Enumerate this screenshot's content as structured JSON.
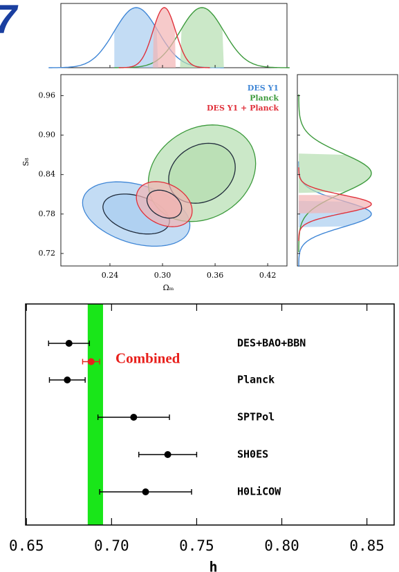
{
  "fragment_text": "7",
  "chart_data": [
    {
      "type": "contour",
      "x_label": "Ωₘ",
      "y_label": "S₈",
      "xlim": [
        0.184,
        0.442
      ],
      "ylim": [
        0.701,
        0.992
      ],
      "xticks": [
        0.24,
        {
          "value": 0.3,
          "label": "0.30"
        },
        0.36,
        0.42
      ],
      "yticks": [
        0.72,
        0.78,
        0.84,
        {
          "value": 0.9,
          "label": "0.90"
        },
        0.96
      ],
      "series": [
        {
          "name": "DES Y1",
          "color": "#3f86d6",
          "fill": "#a9cdf0",
          "x": 0.27,
          "y": 0.78,
          "sigma_x": 0.025,
          "sigma_y": 0.02,
          "rho": -0.35
        },
        {
          "name": "Planck",
          "color": "#3c9a3c",
          "fill": "#b5deb0",
          "x": 0.345,
          "y": 0.842,
          "sigma_x": 0.025,
          "sigma_y": 0.03,
          "rho": 0.2
        },
        {
          "name": "DES Y1 + Planck",
          "color": "#e0303a",
          "fill": "#f2b3b3",
          "x": 0.302,
          "y": 0.795,
          "sigma_x": 0.013,
          "sigma_y": 0.014,
          "rho": -0.3
        }
      ]
    },
    {
      "type": "forest",
      "x_label": "h",
      "xlim": [
        0.6495,
        0.866
      ],
      "xticks": [
        0.65,
        {
          "value": 0.7,
          "label": "0.70"
        },
        0.75,
        {
          "value": 0.8,
          "label": "0.80"
        },
        0.85
      ],
      "band": [
        0.686,
        0.695
      ],
      "band_color": "#19e619",
      "series": [
        {
          "name": "DES+BAO+BBN",
          "value": 0.675,
          "error": 0.012,
          "color": "#000000"
        },
        {
          "name": "Combined",
          "value": 0.688,
          "error": 0.005,
          "color": "#e8201c"
        },
        {
          "name": "Planck",
          "value": 0.674,
          "error": 0.0105,
          "color": "#000000"
        },
        {
          "name": "SPTPol",
          "value": 0.713,
          "error": 0.021,
          "color": "#000000"
        },
        {
          "name": "SH0ES",
          "value": 0.733,
          "error": 0.017,
          "color": "#000000"
        },
        {
          "name": "H0LiCOW",
          "value": 0.72,
          "error": 0.027,
          "color": "#000000"
        }
      ]
    }
  ]
}
